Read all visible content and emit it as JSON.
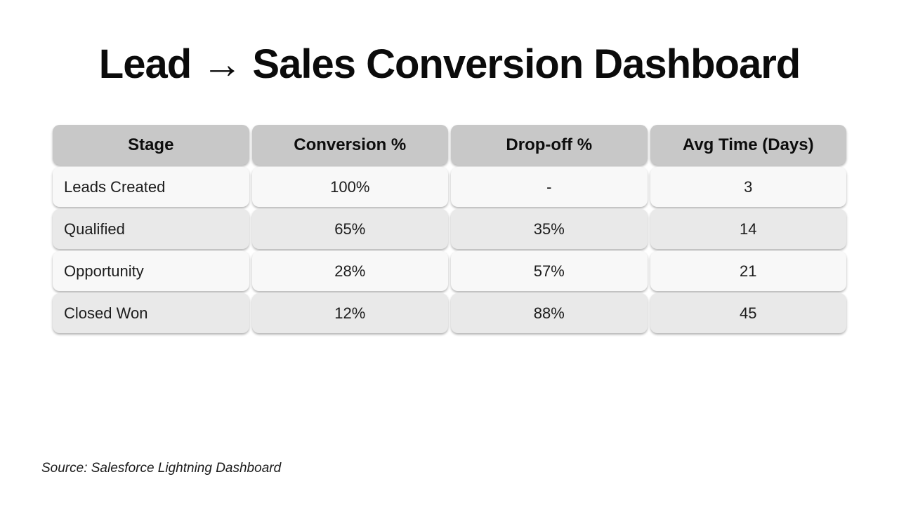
{
  "title": "Lead → Sales Conversion Dashboard",
  "chart_data": {
    "type": "table",
    "title": "Lead → Sales Conversion Dashboard",
    "headers": [
      "Stage",
      "Conversion %",
      "Drop-off %",
      "Avg Time (Days)"
    ],
    "rows": [
      [
        "Leads Created",
        "100%",
        "-",
        "3"
      ],
      [
        "Qualified",
        "65%",
        "35%",
        "14"
      ],
      [
        "Opportunity",
        "28%",
        "57%",
        "21"
      ],
      [
        "Closed Won",
        "12%",
        "88%",
        "45"
      ]
    ],
    "layout": {
      "legend": "none",
      "grid": "off",
      "header_style": "gray-rounded-cells",
      "row_striping": "light/alt alternating"
    }
  },
  "source_note": "Source: Salesforce Lightning Dashboard",
  "colors": {
    "background": "#ffffff",
    "header_bg": "#c8c8c8",
    "row_light": "#f8f8f8",
    "row_alt": "#e9e9e9",
    "text": "#111111"
  }
}
